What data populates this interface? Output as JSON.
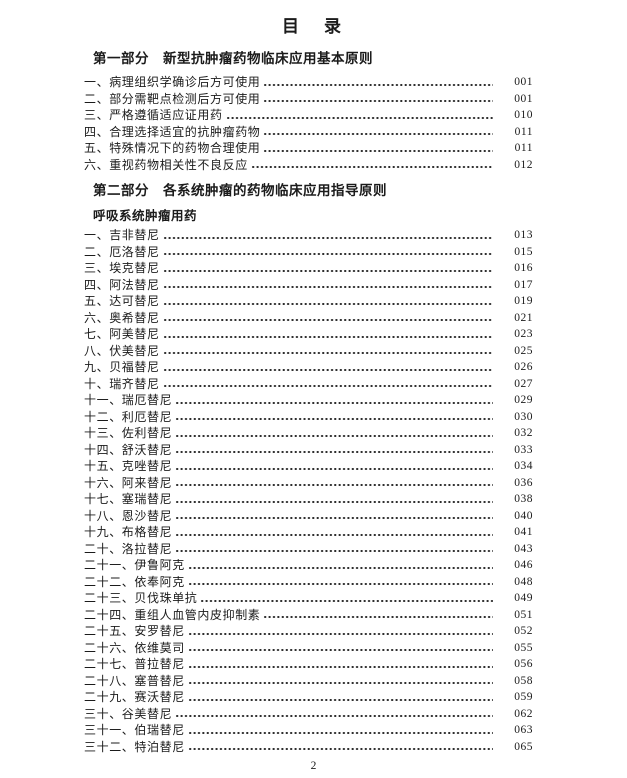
{
  "page": {
    "title": "目　录",
    "footer_page_number": "2"
  },
  "toc": {
    "parts": [
      {
        "heading": "第一部分　新型抗肿瘤药物临床应用基本原则",
        "groups": [
          {
            "subheading": "",
            "entries": [
              {
                "label": "一、病理组织学确诊后方可使用",
                "page": "001"
              },
              {
                "label": "二、部分需靶点检测后方可使用",
                "page": "001"
              },
              {
                "label": "三、严格遵循适应证用药",
                "page": "010"
              },
              {
                "label": "四、合理选择适宜的抗肿瘤药物",
                "page": "011"
              },
              {
                "label": "五、特殊情况下的药物合理使用",
                "page": "011"
              },
              {
                "label": "六、重视药物相关性不良反应",
                "page": "012"
              }
            ]
          }
        ]
      },
      {
        "heading": "第二部分　各系统肿瘤的药物临床应用指导原则",
        "groups": [
          {
            "subheading": "呼吸系统肿瘤用药",
            "entries": [
              {
                "label": "一、吉非替尼",
                "page": "013"
              },
              {
                "label": "二、厄洛替尼",
                "page": "015"
              },
              {
                "label": "三、埃克替尼",
                "page": "016"
              },
              {
                "label": "四、阿法替尼",
                "page": "017"
              },
              {
                "label": "五、达可替尼",
                "page": "019"
              },
              {
                "label": "六、奥希替尼",
                "page": "021"
              },
              {
                "label": "七、阿美替尼",
                "page": "023"
              },
              {
                "label": "八、伏美替尼",
                "page": "025"
              },
              {
                "label": "九、贝福替尼",
                "page": "026"
              },
              {
                "label": "十、瑞齐替尼",
                "page": "027"
              },
              {
                "label": "十一、瑞厄替尼",
                "page": "029"
              },
              {
                "label": "十二、利厄替尼",
                "page": "030"
              },
              {
                "label": "十三、佐利替尼",
                "page": "032"
              },
              {
                "label": "十四、舒沃替尼",
                "page": "033"
              },
              {
                "label": "十五、克唑替尼",
                "page": "034"
              },
              {
                "label": "十六、阿来替尼",
                "page": "036"
              },
              {
                "label": "十七、塞瑞替尼",
                "page": "038"
              },
              {
                "label": "十八、恩沙替尼",
                "page": "040"
              },
              {
                "label": "十九、布格替尼",
                "page": "041"
              },
              {
                "label": "二十、洛拉替尼",
                "page": "043"
              },
              {
                "label": "二十一、伊鲁阿克",
                "page": "046"
              },
              {
                "label": "二十二、依奉阿克",
                "page": "048"
              },
              {
                "label": "二十三、贝伐珠单抗",
                "page": "049"
              },
              {
                "label": "二十四、重组人血管内皮抑制素",
                "page": "051"
              },
              {
                "label": "二十五、安罗替尼",
                "page": "052"
              },
              {
                "label": "二十六、依维莫司",
                "page": "055"
              },
              {
                "label": "二十七、普拉替尼",
                "page": "056"
              },
              {
                "label": "二十八、塞普替尼",
                "page": "058"
              },
              {
                "label": "二十九、赛沃替尼",
                "page": "059"
              },
              {
                "label": "三十、谷美替尼",
                "page": "062"
              },
              {
                "label": "三十一、伯瑞替尼",
                "page": "063"
              },
              {
                "label": "三十二、特泊替尼",
                "page": "065"
              }
            ]
          }
        ]
      }
    ]
  }
}
